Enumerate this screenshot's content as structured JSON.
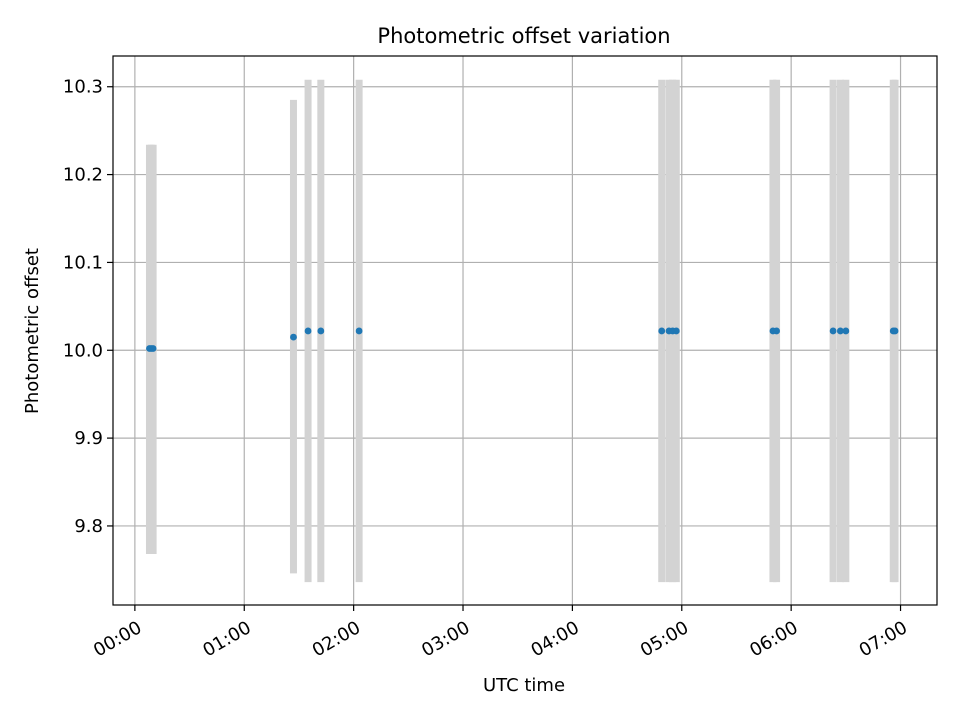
{
  "chart_data": {
    "type": "scatter",
    "title": "Photometric offset variation",
    "xlabel": "UTC time",
    "ylabel": "Photometric offset",
    "x_ticks": [
      "00:00",
      "01:00",
      "02:00",
      "03:00",
      "04:00",
      "05:00",
      "06:00",
      "07:00"
    ],
    "y_ticks": [
      "9.8",
      "9.9",
      "10.0",
      "10.1",
      "10.2",
      "10.3"
    ],
    "xlim": [
      "23:48",
      "07:20"
    ],
    "ylim": [
      9.71,
      10.335
    ],
    "grid": true,
    "legend": "none",
    "colors": {
      "point": "#1f77b4",
      "errorbar": "#d3d3d3",
      "grid": "#b0b0b0"
    },
    "points": [
      {
        "x": "00:08",
        "y": 10.002,
        "low": 9.768,
        "high": 10.234
      },
      {
        "x": "00:09",
        "y": 10.002,
        "low": 9.768,
        "high": 10.234
      },
      {
        "x": "00:10",
        "y": 10.002,
        "low": 9.768,
        "high": 10.234
      },
      {
        "x": "01:27",
        "y": 10.015,
        "low": 9.746,
        "high": 10.285
      },
      {
        "x": "01:35",
        "y": 10.022,
        "low": 9.736,
        "high": 10.308
      },
      {
        "x": "01:42",
        "y": 10.022,
        "low": 9.736,
        "high": 10.308
      },
      {
        "x": "02:03",
        "y": 10.022,
        "low": 9.736,
        "high": 10.308
      },
      {
        "x": "04:49",
        "y": 10.022,
        "low": 9.736,
        "high": 10.308
      },
      {
        "x": "04:53",
        "y": 10.022,
        "low": 9.736,
        "high": 10.308
      },
      {
        "x": "04:55",
        "y": 10.022,
        "low": 9.736,
        "high": 10.308
      },
      {
        "x": "04:57",
        "y": 10.022,
        "low": 9.736,
        "high": 10.308
      },
      {
        "x": "05:50",
        "y": 10.022,
        "low": 9.736,
        "high": 10.308
      },
      {
        "x": "05:52",
        "y": 10.022,
        "low": 9.736,
        "high": 10.308
      },
      {
        "x": "06:23",
        "y": 10.022,
        "low": 9.736,
        "high": 10.308
      },
      {
        "x": "06:27",
        "y": 10.022,
        "low": 9.736,
        "high": 10.308
      },
      {
        "x": "06:30",
        "y": 10.022,
        "low": 9.736,
        "high": 10.308
      },
      {
        "x": "06:56",
        "y": 10.022,
        "low": 9.736,
        "high": 10.308
      },
      {
        "x": "06:57",
        "y": 10.022,
        "low": 9.736,
        "high": 10.308
      }
    ]
  }
}
